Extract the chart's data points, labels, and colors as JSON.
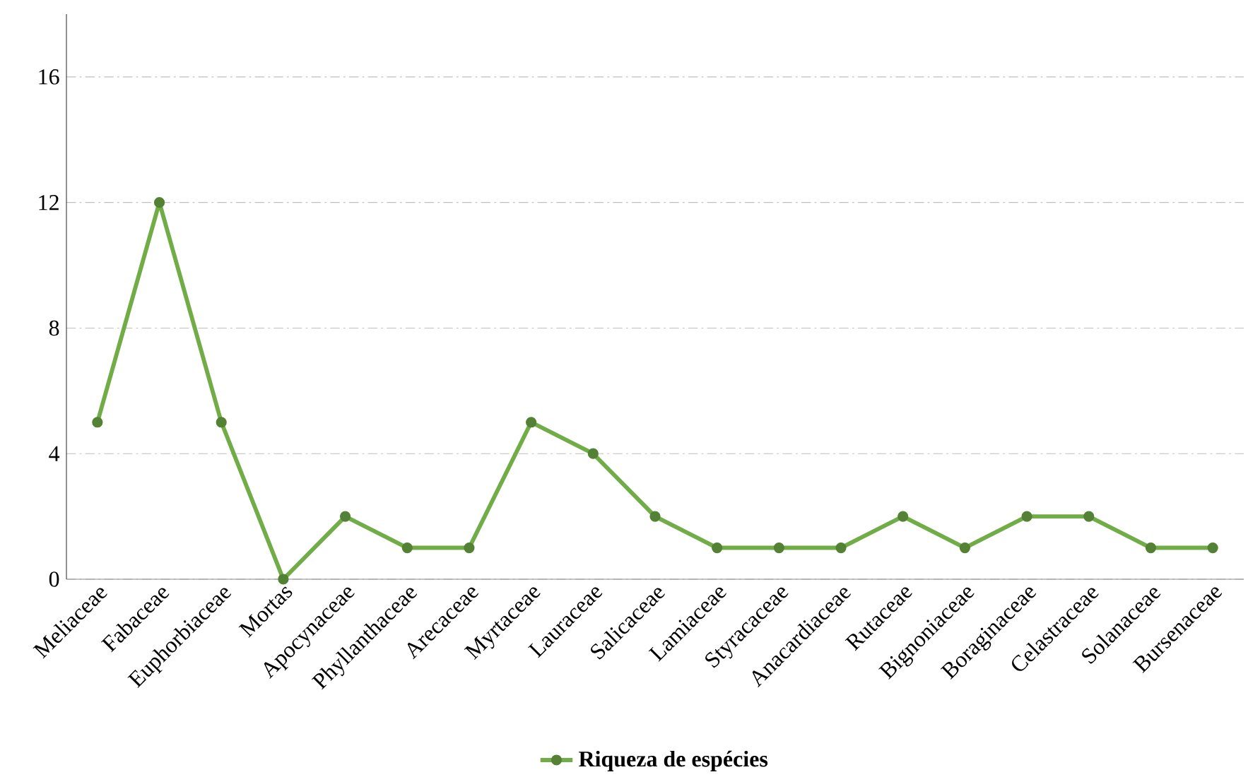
{
  "chart_data": {
    "type": "line",
    "categories": [
      "Meliaceae",
      "Fabaceae",
      "Euphorbiaceae",
      "Mortas",
      "Apocynaceae",
      "Phyllanthaceae",
      "Arecaceae",
      "Myrtaceae",
      "Lauraceae",
      "Salicaceae",
      "Lamiaceae",
      "Styracaceae",
      "Anacardiaceae",
      "Rutaceae",
      "Bignoniaceae",
      "Boraginaceae",
      "Celastraceae",
      "Solanaceae",
      "Bursenaceae"
    ],
    "series": [
      {
        "name": "Riqueza de espécies",
        "color": "#70ad47",
        "values": [
          5,
          12,
          5,
          0,
          2,
          1,
          1,
          5,
          4,
          2,
          1,
          1,
          1,
          2,
          1,
          2,
          2,
          1,
          1
        ]
      }
    ],
    "ylim": [
      0,
      18
    ],
    "yticks": [
      0,
      4,
      8,
      12,
      16
    ],
    "grid": "y",
    "legend": "bottom",
    "marker": "circle",
    "line_style": "solid"
  }
}
